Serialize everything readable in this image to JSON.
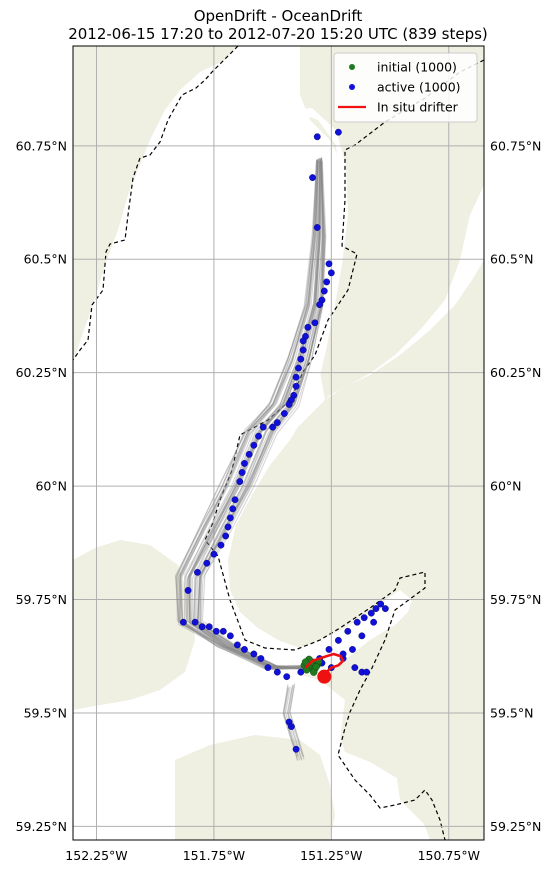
{
  "chart_data": {
    "type": "scatter",
    "title": "OpenDrift - OceanDrift",
    "subtitle": "2012-06-15 17:20 to 2012-07-20 15:20 UTC (839 steps)",
    "projection": "geographic map",
    "xlim": [
      -152.35,
      -150.6
    ],
    "ylim": [
      59.22,
      60.97
    ],
    "x_ticks": [
      {
        "value": -152.25,
        "label": "152.25°W"
      },
      {
        "value": -151.75,
        "label": "151.75°W"
      },
      {
        "value": -151.25,
        "label": "151.25°W"
      },
      {
        "value": -150.75,
        "label": "150.75°W"
      }
    ],
    "y_ticks": [
      {
        "value": 60.75,
        "label": "60.75°N"
      },
      {
        "value": 60.5,
        "label": "60.5°N"
      },
      {
        "value": 60.25,
        "label": "60.25°N"
      },
      {
        "value": 60.0,
        "label": "60°N"
      },
      {
        "value": 59.75,
        "label": "59.75°N"
      },
      {
        "value": 59.5,
        "label": "59.5°N"
      },
      {
        "value": 59.25,
        "label": "59.25°N"
      }
    ],
    "grid": true,
    "legend_position": "top-right",
    "colors": {
      "land": "#efefe2",
      "water": "#ffffff",
      "trajectory": "#8a8a8a",
      "initial": "#1f7a1f",
      "active": "#1010d8",
      "drifter": "#ee1111",
      "grid": "#b0b0b0",
      "boundary": "#000000"
    },
    "series": [
      {
        "name": "initial (1000)",
        "kind": "points",
        "points": [
          [
            -151.365,
            59.605
          ],
          [
            -151.35,
            59.61
          ],
          [
            -151.34,
            59.6
          ],
          [
            -151.33,
            59.612
          ],
          [
            -151.32,
            59.598
          ],
          [
            -151.31,
            59.606
          ],
          [
            -151.355,
            59.595
          ],
          [
            -151.345,
            59.618
          ],
          [
            -151.325,
            59.59
          ],
          [
            -151.305,
            59.614
          ],
          [
            -151.36,
            59.612
          ],
          [
            -151.315,
            59.602
          ]
        ]
      },
      {
        "name": "active (1000)",
        "kind": "points",
        "points": [
          [
            -151.31,
            60.77
          ],
          [
            -151.22,
            60.78
          ],
          [
            -151.33,
            60.68
          ],
          [
            -151.31,
            60.57
          ],
          [
            -151.26,
            60.49
          ],
          [
            -151.25,
            60.47
          ],
          [
            -151.27,
            60.45
          ],
          [
            -151.28,
            60.43
          ],
          [
            -151.29,
            60.41
          ],
          [
            -151.3,
            60.4
          ],
          [
            -151.32,
            60.36
          ],
          [
            -151.35,
            60.35
          ],
          [
            -151.36,
            60.33
          ],
          [
            -151.37,
            60.32
          ],
          [
            -151.37,
            60.3
          ],
          [
            -151.38,
            60.28
          ],
          [
            -151.39,
            60.26
          ],
          [
            -151.4,
            60.24
          ],
          [
            -151.4,
            60.22
          ],
          [
            -151.41,
            60.2
          ],
          [
            -151.42,
            60.19
          ],
          [
            -151.43,
            60.18
          ],
          [
            -151.45,
            60.16
          ],
          [
            -151.48,
            60.14
          ],
          [
            -151.5,
            60.13
          ],
          [
            -151.54,
            60.13
          ],
          [
            -151.56,
            60.11
          ],
          [
            -151.58,
            60.09
          ],
          [
            -151.6,
            60.07
          ],
          [
            -151.62,
            60.05
          ],
          [
            -151.63,
            60.03
          ],
          [
            -151.64,
            60.01
          ],
          [
            -151.66,
            59.97
          ],
          [
            -151.67,
            59.95
          ],
          [
            -151.68,
            59.93
          ],
          [
            -151.69,
            59.91
          ],
          [
            -151.7,
            59.89
          ],
          [
            -151.72,
            59.87
          ],
          [
            -151.75,
            59.85
          ],
          [
            -151.78,
            59.83
          ],
          [
            -151.82,
            59.81
          ],
          [
            -151.86,
            59.77
          ],
          [
            -151.88,
            59.7
          ],
          [
            -151.83,
            59.7
          ],
          [
            -151.8,
            59.69
          ],
          [
            -151.77,
            59.69
          ],
          [
            -151.74,
            59.68
          ],
          [
            -151.71,
            59.68
          ],
          [
            -151.68,
            59.67
          ],
          [
            -151.65,
            59.65
          ],
          [
            -151.62,
            59.64
          ],
          [
            -151.58,
            59.63
          ],
          [
            -151.55,
            59.62
          ],
          [
            -151.52,
            59.6
          ],
          [
            -151.48,
            59.59
          ],
          [
            -151.44,
            59.58
          ],
          [
            -151.38,
            59.59
          ],
          [
            -151.3,
            59.62
          ],
          [
            -151.26,
            59.64
          ],
          [
            -151.22,
            59.66
          ],
          [
            -151.18,
            59.68
          ],
          [
            -151.14,
            59.7
          ],
          [
            -151.11,
            59.71
          ],
          [
            -151.08,
            59.72
          ],
          [
            -151.06,
            59.73
          ],
          [
            -151.04,
            59.74
          ],
          [
            -151.02,
            59.73
          ],
          [
            -151.07,
            59.7
          ],
          [
            -151.12,
            59.67
          ],
          [
            -151.16,
            59.64
          ],
          [
            -151.2,
            59.62
          ],
          [
            -151.15,
            59.6
          ],
          [
            -151.12,
            59.59
          ],
          [
            -151.1,
            59.59
          ],
          [
            -151.43,
            59.48
          ],
          [
            -151.42,
            59.47
          ],
          [
            -151.4,
            59.42
          ],
          [
            -151.29,
            59.61
          ],
          [
            -151.25,
            59.6
          ],
          [
            -151.2,
            59.63
          ]
        ]
      },
      {
        "name": "In situ drifter",
        "kind": "line",
        "points": [
          [
            -151.36,
            59.6
          ],
          [
            -151.33,
            59.615
          ],
          [
            -151.3,
            59.62
          ],
          [
            -151.27,
            59.625
          ],
          [
            -151.24,
            59.63
          ],
          [
            -151.21,
            59.625
          ],
          [
            -151.2,
            59.615
          ],
          [
            -151.22,
            59.605
          ],
          [
            -151.25,
            59.6
          ],
          [
            -151.27,
            59.59
          ],
          [
            -151.28,
            59.58
          ]
        ]
      }
    ],
    "trajectory_envelope": {
      "kind": "particle tracks",
      "centerline": [
        [
          -151.3,
          60.72
        ],
        [
          -151.3,
          60.55
        ],
        [
          -151.32,
          60.4
        ],
        [
          -151.38,
          60.28
        ],
        [
          -151.45,
          60.18
        ],
        [
          -151.55,
          60.12
        ],
        [
          -151.65,
          60.0
        ],
        [
          -151.75,
          59.9
        ],
        [
          -151.85,
          59.8
        ],
        [
          -151.85,
          59.7
        ],
        [
          -151.7,
          59.65
        ],
        [
          -151.5,
          59.6
        ],
        [
          -151.35,
          59.6
        ]
      ],
      "tail": [
        [
          -151.42,
          59.56
        ],
        [
          -151.44,
          59.5
        ],
        [
          -151.41,
          59.45
        ],
        [
          -151.38,
          59.4
        ]
      ]
    }
  }
}
